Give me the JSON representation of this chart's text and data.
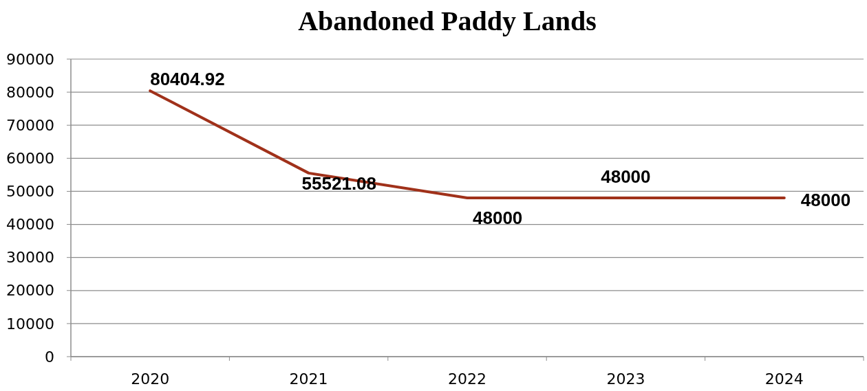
{
  "chart_data": {
    "type": "line",
    "title": "Abandoned Paddy Lands",
    "categories": [
      "2020",
      "2021",
      "2022",
      "2023",
      "2024"
    ],
    "series": [
      {
        "color": "#a0311a",
        "values": [
          80404.92,
          55521.08,
          48000,
          48000,
          48000
        ]
      }
    ],
    "ylim": [
      0,
      90000
    ],
    "yticks": [
      0,
      10000,
      20000,
      30000,
      40000,
      50000,
      60000,
      70000,
      80000,
      90000
    ],
    "grid": "y",
    "data_labels": true,
    "marker": "none"
  }
}
